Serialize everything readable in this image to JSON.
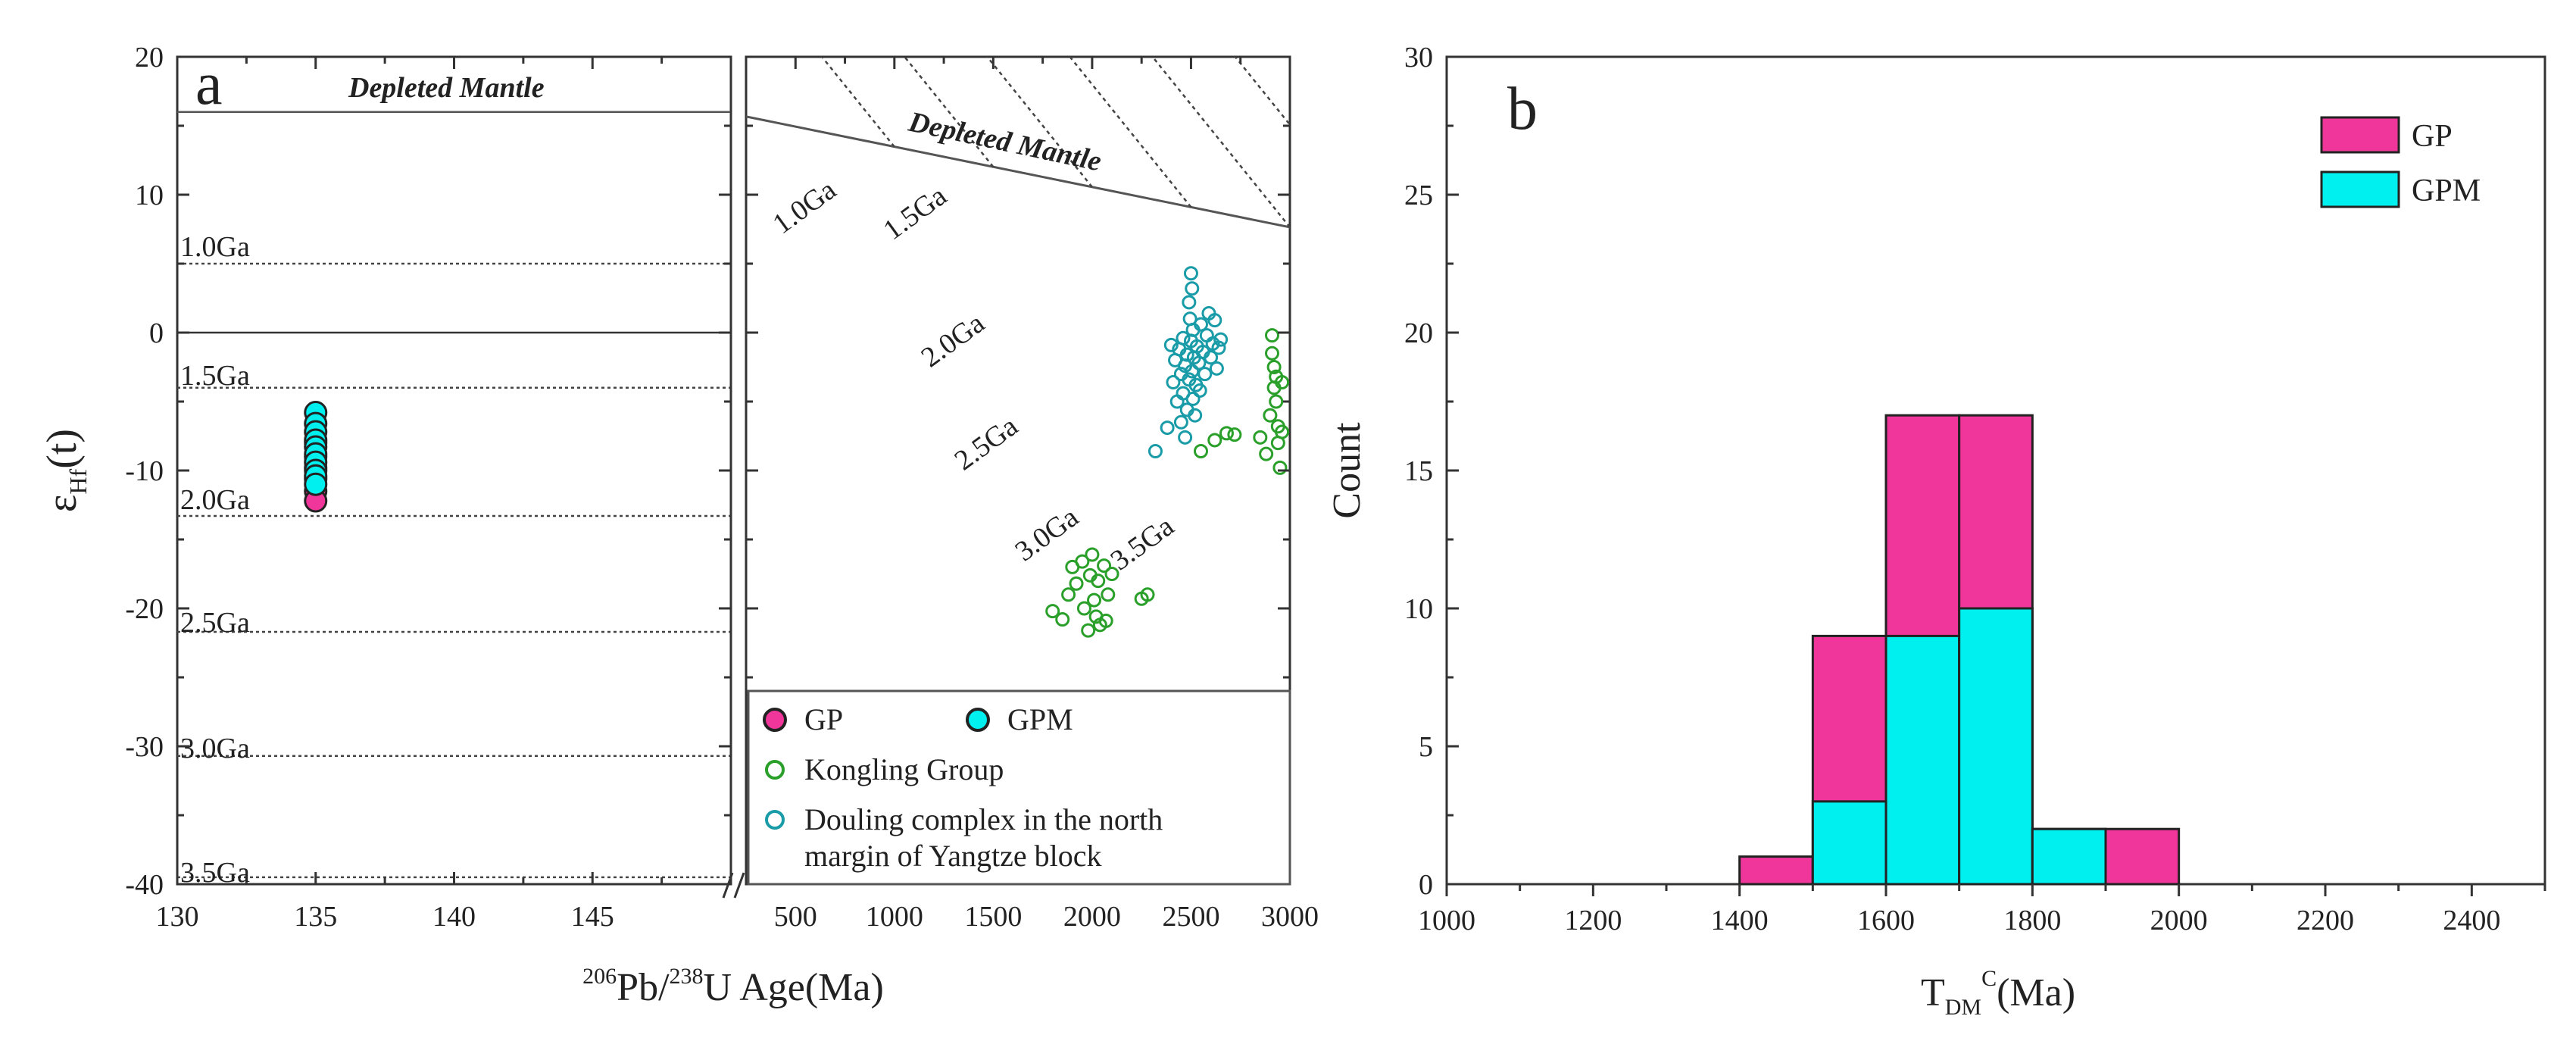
{
  "figure": {
    "panel_a": {
      "letter": "a",
      "xlabel_sup1": "206",
      "xlabel_pb": "Pb/",
      "xlabel_sup2": "238",
      "xlabel_rest": "U Age(Ma)",
      "ylabel_main": "ε",
      "ylabel_sub": "Hf",
      "ylabel_rest": "(t)",
      "left_dm_label": "Depleted Mantle",
      "right_dm_label": "Depleted Mantle",
      "left_ga_labels": [
        "1.0Ga",
        "1.5Ga",
        "2.0Ga",
        "2.5Ga",
        "3.0Ga",
        "3.5Ga"
      ],
      "right_ga_labels": [
        "1.0Ga",
        "1.5Ga",
        "2.0Ga",
        "2.5Ga",
        "3.0Ga",
        "3.5Ga"
      ],
      "legend": {
        "gp": "GP",
        "gpm": "GPM",
        "kongling": "Kongling Group",
        "douling_line1": "Douling complex in the north",
        "douling_line2": "margin of Yangtze block"
      },
      "left_xticks": [
        "130",
        "135",
        "140",
        "145"
      ],
      "right_xticks": [
        "500",
        "1000",
        "1500",
        "2000",
        "2500",
        "3000"
      ],
      "yticks": [
        "20",
        "10",
        "0",
        "-10",
        "-20",
        "-30",
        "-40"
      ]
    },
    "panel_b": {
      "letter": "b",
      "xlabel_main": "T",
      "xlabel_sub": "DM",
      "xlabel_sup": "C",
      "xlabel_rest": "(Ma)",
      "ylabel": "Count",
      "xticks": [
        "1000",
        "1200",
        "1400",
        "1600",
        "1800",
        "2000",
        "2200",
        "2400"
      ],
      "yticks": [
        "0",
        "5",
        "10",
        "15",
        "20",
        "25",
        "30"
      ],
      "legend": {
        "gp": "GP",
        "gpm": "GPM"
      }
    }
  },
  "colors": {
    "gp": "#f0369a",
    "gpm": "#00f0f0",
    "kongling": "#2aa02a",
    "douling": "#1a9ca8",
    "axis": "#333333",
    "ga_line": "#444444"
  },
  "chart_data": [
    {
      "type": "scatter",
      "xlabel": "206Pb/238U Age(Ma)",
      "ylabel": "εHf(t)",
      "ylim": [
        -40,
        20
      ],
      "xlim_left": [
        130,
        150
      ],
      "xlim_right": [
        250,
        3000
      ],
      "x_axis_broken": true,
      "depleted_mantle_epsilon_at_present": 16.4,
      "crustal_model_ages_Ga": [
        1.0,
        1.5,
        2.0,
        2.5,
        3.0,
        3.5
      ],
      "legend_placement": "bottom-right",
      "series": [
        {
          "name": "GP",
          "marker": "filled-circle",
          "points": [
            [
              135,
              -8.0
            ],
            [
              135,
              -9.0
            ],
            [
              135,
              -9.8
            ],
            [
              135,
              -10.6
            ],
            [
              135,
              -11.5
            ],
            [
              135,
              -12.2
            ]
          ]
        },
        {
          "name": "GPM",
          "marker": "filled-circle",
          "points": [
            [
              135,
              -5.8
            ],
            [
              135,
              -6.6
            ],
            [
              135,
              -7.2
            ],
            [
              135,
              -7.8
            ],
            [
              135,
              -8.3
            ],
            [
              135,
              -8.8
            ],
            [
              135,
              -9.4
            ],
            [
              135,
              -10.0
            ],
            [
              135,
              -10.4
            ],
            [
              135,
              -11.0
            ]
          ]
        },
        {
          "name": "Kongling Group",
          "marker": "open-circle",
          "points": [
            [
              1800,
              -20.2
            ],
            [
              1850,
              -20.8
            ],
            [
              1880,
              -19.0
            ],
            [
              1900,
              -17.0
            ],
            [
              1920,
              -18.2
            ],
            [
              1950,
              -16.6
            ],
            [
              1960,
              -20.0
            ],
            [
              1980,
              -21.6
            ],
            [
              1990,
              -17.6
            ],
            [
              2000,
              -16.1
            ],
            [
              2010,
              -19.4
            ],
            [
              2020,
              -20.6
            ],
            [
              2030,
              -18.0
            ],
            [
              2040,
              -21.2
            ],
            [
              2060,
              -16.9
            ],
            [
              2070,
              -20.9
            ],
            [
              2080,
              -19.0
            ],
            [
              2100,
              -17.5
            ],
            [
              2250,
              -19.3
            ],
            [
              2280,
              -19.0
            ],
            [
              2550,
              -8.6
            ],
            [
              2620,
              -7.8
            ],
            [
              2680,
              -7.3
            ],
            [
              2720,
              -7.4
            ],
            [
              2850,
              -7.6
            ],
            [
              2880,
              -8.8
            ],
            [
              2900,
              -6.0
            ],
            [
              2910,
              -0.2
            ],
            [
              2910,
              -1.5
            ],
            [
              2920,
              -2.5
            ],
            [
              2920,
              -4.0
            ],
            [
              2930,
              -3.2
            ],
            [
              2930,
              -5.0
            ],
            [
              2940,
              -6.8
            ],
            [
              2940,
              -8.0
            ],
            [
              2950,
              -9.8
            ],
            [
              2960,
              -7.2
            ],
            [
              2960,
              -3.6
            ]
          ]
        },
        {
          "name": "Douling complex in the north margin of Yangtze block",
          "marker": "open-circle",
          "points": [
            [
              2320,
              -8.6
            ],
            [
              2380,
              -6.9
            ],
            [
              2400,
              -0.9
            ],
            [
              2410,
              -3.6
            ],
            [
              2420,
              -2.0
            ],
            [
              2430,
              -5.0
            ],
            [
              2440,
              -1.2
            ],
            [
              2450,
              -3.0
            ],
            [
              2450,
              -6.5
            ],
            [
              2460,
              -0.4
            ],
            [
              2460,
              -4.4
            ],
            [
              2470,
              -2.4
            ],
            [
              2470,
              -7.6
            ],
            [
              2480,
              -1.6
            ],
            [
              2480,
              -5.6
            ],
            [
              2490,
              2.2
            ],
            [
              2490,
              -3.4
            ],
            [
              2495,
              1.0
            ],
            [
              2500,
              4.3
            ],
            [
              2500,
              -0.6
            ],
            [
              2505,
              3.2
            ],
            [
              2505,
              -2.8
            ],
            [
              2510,
              0.2
            ],
            [
              2510,
              -4.8
            ],
            [
              2515,
              -1.8
            ],
            [
              2520,
              -6.0
            ],
            [
              2525,
              -3.8
            ],
            [
              2530,
              -1.0
            ],
            [
              2540,
              -2.2
            ],
            [
              2545,
              -4.2
            ],
            [
              2550,
              0.6
            ],
            [
              2560,
              -1.4
            ],
            [
              2570,
              -3.0
            ],
            [
              2580,
              -0.2
            ],
            [
              2590,
              1.4
            ],
            [
              2600,
              -1.8
            ],
            [
              2610,
              -0.8
            ],
            [
              2620,
              0.9
            ],
            [
              2630,
              -2.6
            ],
            [
              2640,
              -1.1
            ],
            [
              2650,
              -0.5
            ]
          ]
        }
      ]
    },
    {
      "type": "bar",
      "stacked": true,
      "xlabel": "TDM C (Ma)",
      "ylabel": "Count",
      "xlim": [
        1000,
        2500
      ],
      "ylim": [
        0,
        30
      ],
      "legend_placement": "top-right",
      "bins": [
        [
          1400,
          1500
        ],
        [
          1500,
          1600
        ],
        [
          1600,
          1700
        ],
        [
          1700,
          1800
        ],
        [
          1800,
          1900
        ],
        [
          1900,
          2000
        ]
      ],
      "series": [
        {
          "name": "GPM",
          "values": [
            0,
            3,
            9,
            10,
            2,
            0
          ]
        },
        {
          "name": "GP",
          "values": [
            1,
            6,
            8,
            7,
            0,
            2
          ]
        }
      ],
      "totals": [
        1,
        9,
        17,
        17,
        2,
        2
      ]
    }
  ]
}
